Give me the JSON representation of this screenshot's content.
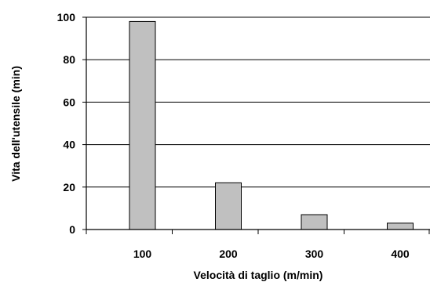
{
  "chart_data": {
    "type": "bar",
    "title": "",
    "xlabel": "Velocità di taglio (m/min)",
    "ylabel": "Vita dell'utensile  (min)",
    "categories": [
      "100",
      "200",
      "300",
      "400"
    ],
    "values": [
      98,
      22,
      7,
      3
    ],
    "ylim": [
      0,
      100
    ],
    "yticks": [
      0,
      20,
      40,
      60,
      80,
      100
    ],
    "grid": true,
    "bar_color": "#c0c0c0",
    "bar_edge_color": "#000000",
    "gridline_color": "#000000"
  }
}
